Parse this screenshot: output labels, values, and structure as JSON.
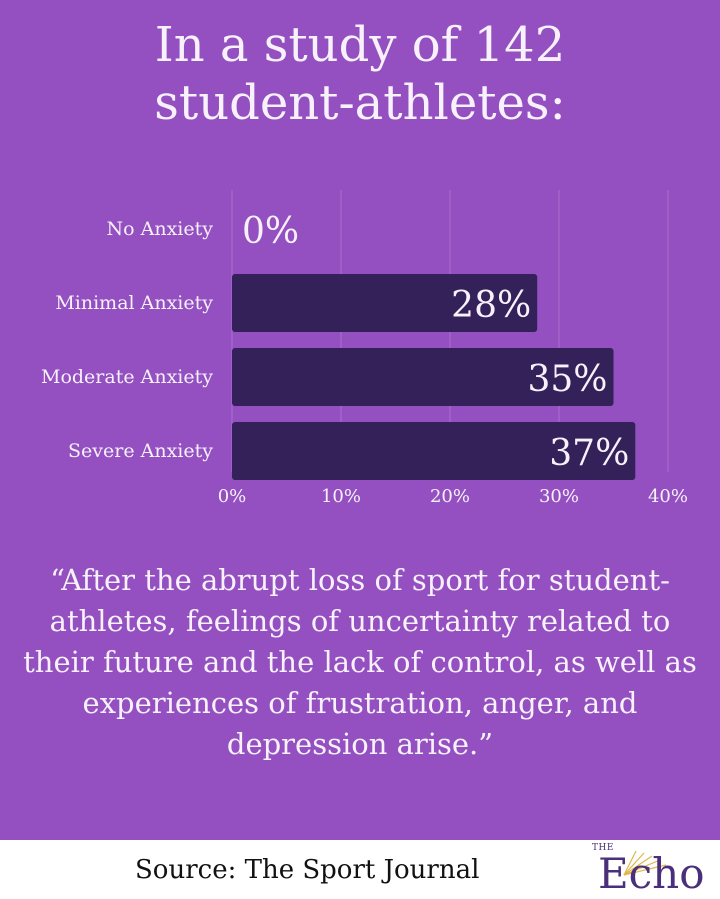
{
  "title": {
    "line1": "In a study of 142",
    "line2": "student-athletes:"
  },
  "chart_data": {
    "type": "bar",
    "orientation": "horizontal",
    "categories": [
      "No Anxiety",
      "Minimal Anxiety",
      "Moderate Anxiety",
      "Severe Anxiety"
    ],
    "values": [
      0,
      28,
      35,
      37
    ],
    "data_labels": [
      "0%",
      "28%",
      "35%",
      "37%"
    ],
    "xlim": [
      0,
      40
    ],
    "x_ticks": [
      "0%",
      "10%",
      "20%",
      "30%",
      "40%"
    ],
    "grid": true,
    "bar_color": "#34215a"
  },
  "quote": "“After the abrupt loss of sport for student-athletes, feelings of uncertainty related to their future and the lack of control, as well as experiences of frustration, anger, and depression arise.”",
  "footer": {
    "source": "Source: The Sport Journal",
    "logo_small": "THE",
    "logo_word": "Echo"
  },
  "colors": {
    "background": "#9450c0",
    "text": "#f7f1fb",
    "bar": "#34215a",
    "logo": "#4a2f7a"
  }
}
